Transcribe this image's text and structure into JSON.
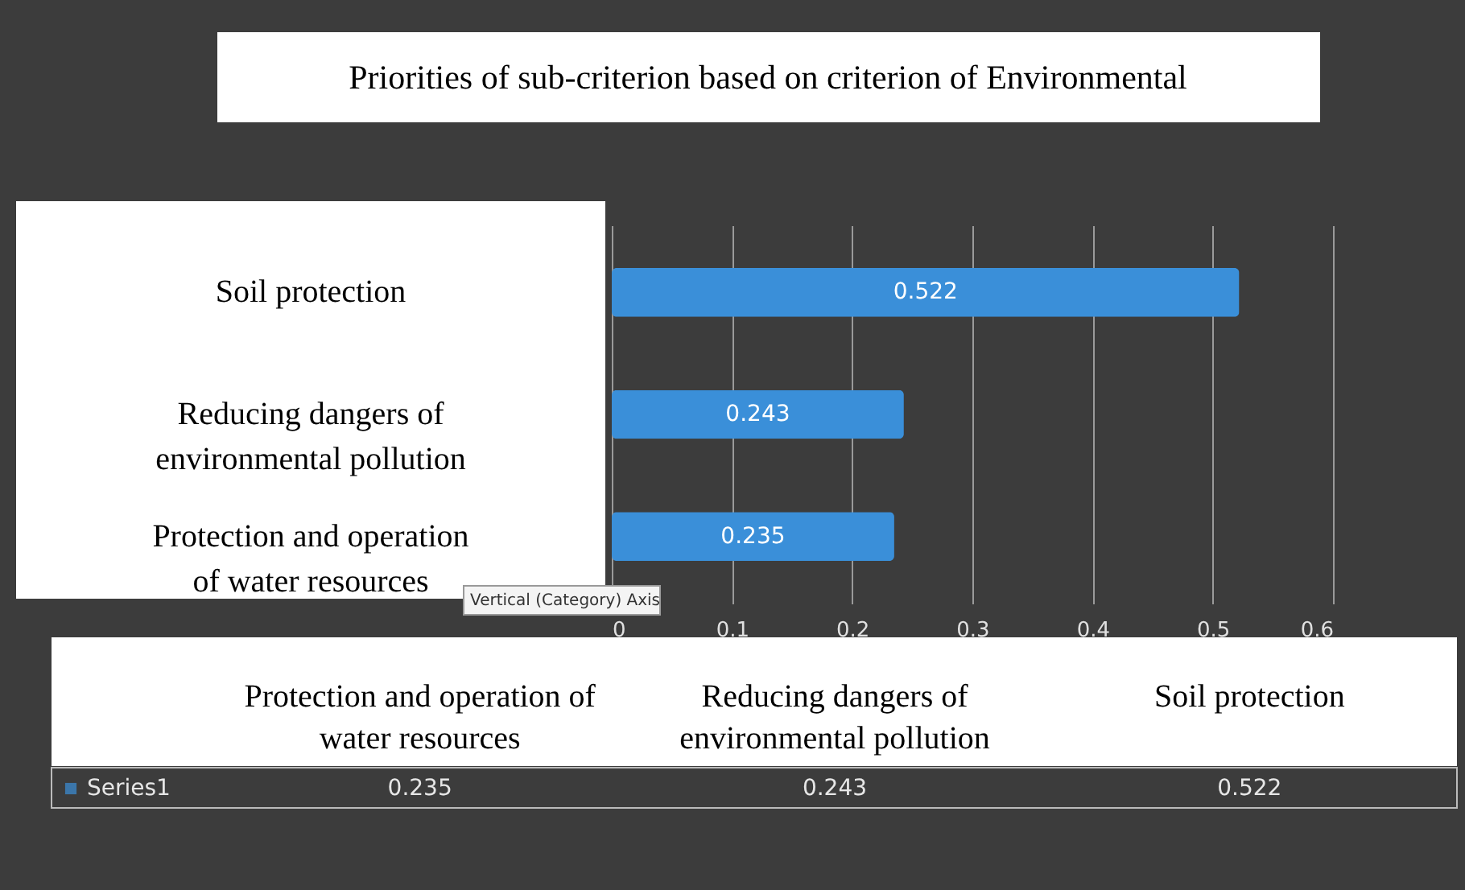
{
  "chart_data": {
    "type": "bar",
    "orientation": "horizontal",
    "title": "Priorities of sub-criterion based on criterion of Environmental",
    "categories": [
      "Soil protection",
      "Reducing dangers of environmental pollution",
      "Protection and operation of water resources"
    ],
    "series": [
      {
        "name": "Series1",
        "color": "#3a8fd9",
        "values": [
          0.522,
          0.243,
          0.235
        ]
      }
    ],
    "xlim": [
      0,
      0.6
    ],
    "xticks": [
      0,
      0.1,
      0.2,
      0.3,
      0.4,
      0.5,
      0.6
    ],
    "grid": "x",
    "data_labels": true,
    "legend": "bottom",
    "annotations": [
      "Vertical (Category) Axis",
      "0.235",
      "0.243",
      "0.522"
    ]
  }
}
